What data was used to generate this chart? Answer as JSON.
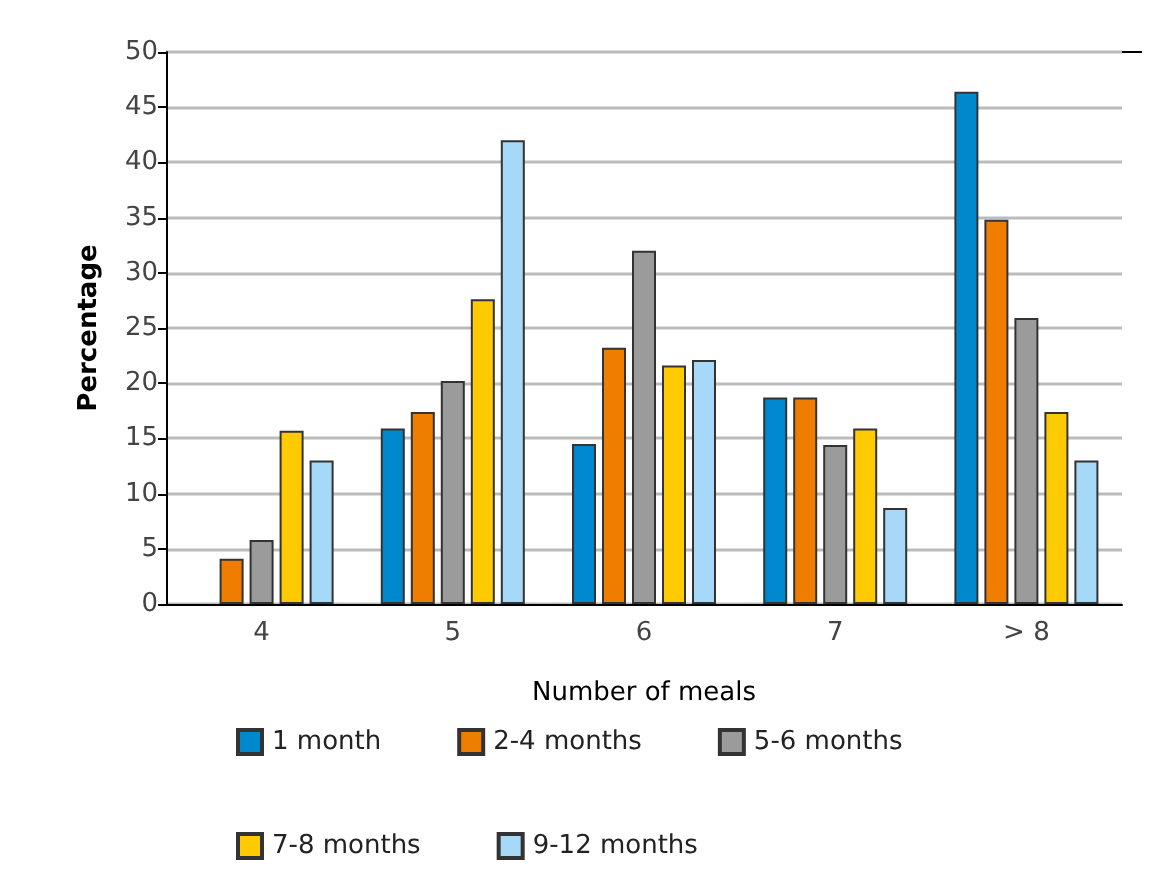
{
  "chart_data": {
    "type": "bar",
    "xlabel": "Number of meals",
    "ylabel": "Percentage",
    "categories": [
      "4",
      "5",
      "6",
      "7",
      "> 8"
    ],
    "series": [
      {
        "name": "1 month",
        "color": "#0088cf",
        "values": [
          null,
          15.9,
          14.5,
          18.7,
          46.4
        ]
      },
      {
        "name": "2-4 months",
        "color": "#ef7d00",
        "values": [
          4.1,
          17.4,
          23.2,
          18.7,
          34.8
        ]
      },
      {
        "name": "5-6 months",
        "color": "#9b9b9b",
        "values": [
          5.8,
          20.2,
          32.0,
          14.4,
          25.9
        ]
      },
      {
        "name": "7-8 months",
        "color": "#ffcb00",
        "values": [
          15.7,
          27.6,
          21.6,
          15.9,
          17.4
        ]
      },
      {
        "name": "9-12 months",
        "color": "#a5d9f7",
        "values": [
          13.0,
          42.0,
          22.1,
          8.7,
          13.0
        ]
      }
    ],
    "ylim": [
      0,
      50
    ],
    "yticks": [
      0,
      5,
      10,
      15,
      20,
      25,
      30,
      35,
      40,
      45,
      50
    ],
    "grid": "y",
    "legend": "bottom"
  }
}
